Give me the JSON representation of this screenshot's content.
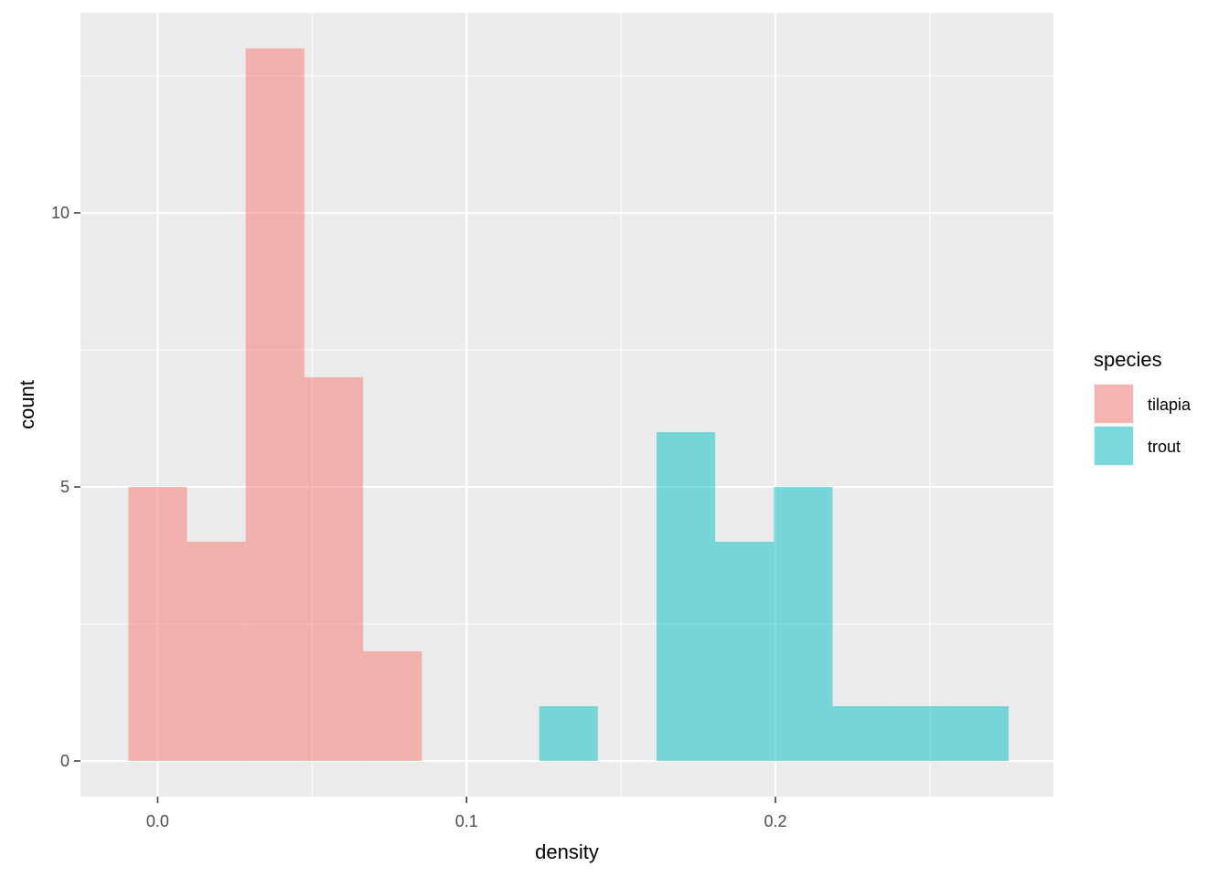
{
  "chart_data": {
    "type": "bar",
    "subtype": "histogram",
    "xlabel": "density",
    "ylabel": "count",
    "xlim": [
      -0.025,
      0.29
    ],
    "ylim": [
      -0.65,
      13.65
    ],
    "x_ticks": [
      0.0,
      0.1,
      0.2
    ],
    "x_tick_labels": [
      "0.0",
      "0.1",
      "0.2"
    ],
    "y_ticks": [
      0,
      5,
      10
    ],
    "y_tick_labels": [
      "0",
      "5",
      "10"
    ],
    "grid": true,
    "legend": {
      "title": "species",
      "placement": "right",
      "entries": [
        "tilapia",
        "trout"
      ]
    },
    "bin_width": 0.019,
    "series": [
      {
        "name": "tilapia",
        "color": "#F8766D",
        "bins": [
          {
            "x0": -0.0095,
            "x1": 0.0095,
            "count": 5
          },
          {
            "x0": 0.0095,
            "x1": 0.0285,
            "count": 4
          },
          {
            "x0": 0.0285,
            "x1": 0.0475,
            "count": 13
          },
          {
            "x0": 0.0475,
            "x1": 0.0665,
            "count": 7
          },
          {
            "x0": 0.0665,
            "x1": 0.0855,
            "count": 2
          }
        ]
      },
      {
        "name": "trout",
        "color": "#00BFC4",
        "bins": [
          {
            "x0": 0.1235,
            "x1": 0.1425,
            "count": 1
          },
          {
            "x0": 0.1615,
            "x1": 0.1805,
            "count": 6
          },
          {
            "x0": 0.1805,
            "x1": 0.1995,
            "count": 4
          },
          {
            "x0": 0.1995,
            "x1": 0.2185,
            "count": 5
          },
          {
            "x0": 0.2185,
            "x1": 0.2375,
            "count": 1
          },
          {
            "x0": 0.2375,
            "x1": 0.2565,
            "count": 1
          },
          {
            "x0": 0.2565,
            "x1": 0.2755,
            "count": 1
          }
        ]
      }
    ]
  }
}
